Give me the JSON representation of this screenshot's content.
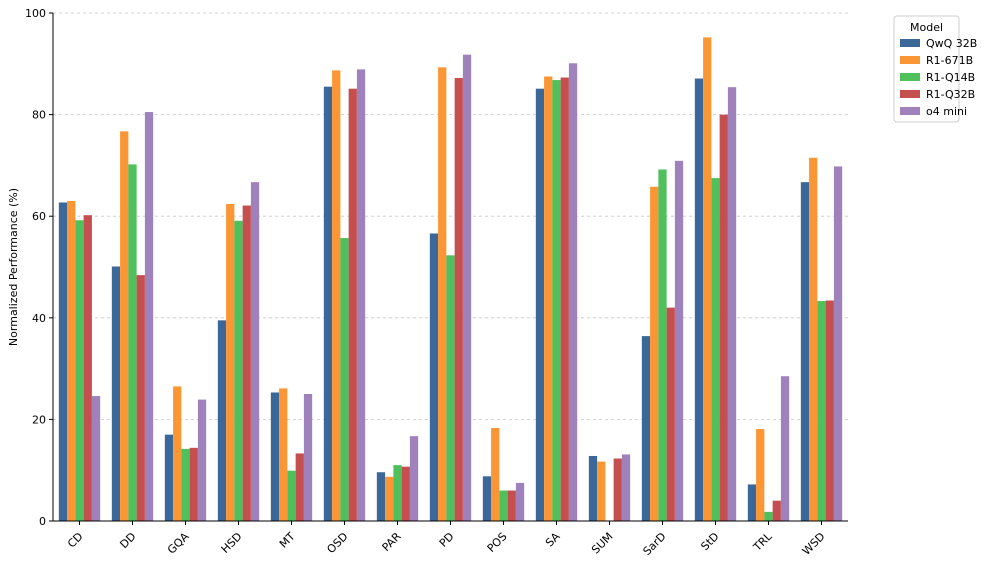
{
  "chart_data": {
    "type": "bar",
    "title": "",
    "xlabel": "",
    "ylabel": "Normalized Performance (%)",
    "ylim": [
      0,
      100
    ],
    "yticks": [
      0,
      20,
      40,
      60,
      80,
      100
    ],
    "grid": "horizontal dashed",
    "legend_placement": "outside top-right",
    "legend_title": "Model",
    "categories": [
      "CD",
      "DD",
      "GQA",
      "HSD",
      "MT",
      "OSD",
      "PAR",
      "PD",
      "POS",
      "SA",
      "SUM",
      "SarD",
      "StD",
      "TRL",
      "WSD"
    ],
    "series": [
      {
        "name": "QwQ 32B",
        "color": "#3b6898",
        "values": [
          62.7,
          50.1,
          17.0,
          39.5,
          25.3,
          85.5,
          9.6,
          56.6,
          8.8,
          85.1,
          12.8,
          36.4,
          87.1,
          7.2,
          66.7
        ]
      },
      {
        "name": "R1-671B",
        "color": "#fb9635",
        "values": [
          63.0,
          76.7,
          26.5,
          62.4,
          26.1,
          88.7,
          8.7,
          89.3,
          18.3,
          87.5,
          11.7,
          65.8,
          95.2,
          18.1,
          71.5
        ]
      },
      {
        "name": "R1-Q14B",
        "color": "#4fc05b",
        "values": [
          59.2,
          70.2,
          14.2,
          59.1,
          9.9,
          55.7,
          11.0,
          52.3,
          6.0,
          86.8,
          0.0,
          69.2,
          67.5,
          1.8,
          43.3
        ]
      },
      {
        "name": "R1-Q32B",
        "color": "#c54f4f",
        "values": [
          60.2,
          48.4,
          14.4,
          62.1,
          13.3,
          85.1,
          10.7,
          87.2,
          6.0,
          87.3,
          12.3,
          42.0,
          80.0,
          4.0,
          43.4
        ]
      },
      {
        "name": "o4 mini",
        "color": "#9f82bc",
        "values": [
          24.6,
          80.5,
          23.9,
          66.7,
          25.0,
          88.9,
          16.7,
          91.8,
          7.5,
          90.1,
          13.1,
          70.9,
          85.4,
          28.5,
          69.8
        ]
      }
    ]
  }
}
